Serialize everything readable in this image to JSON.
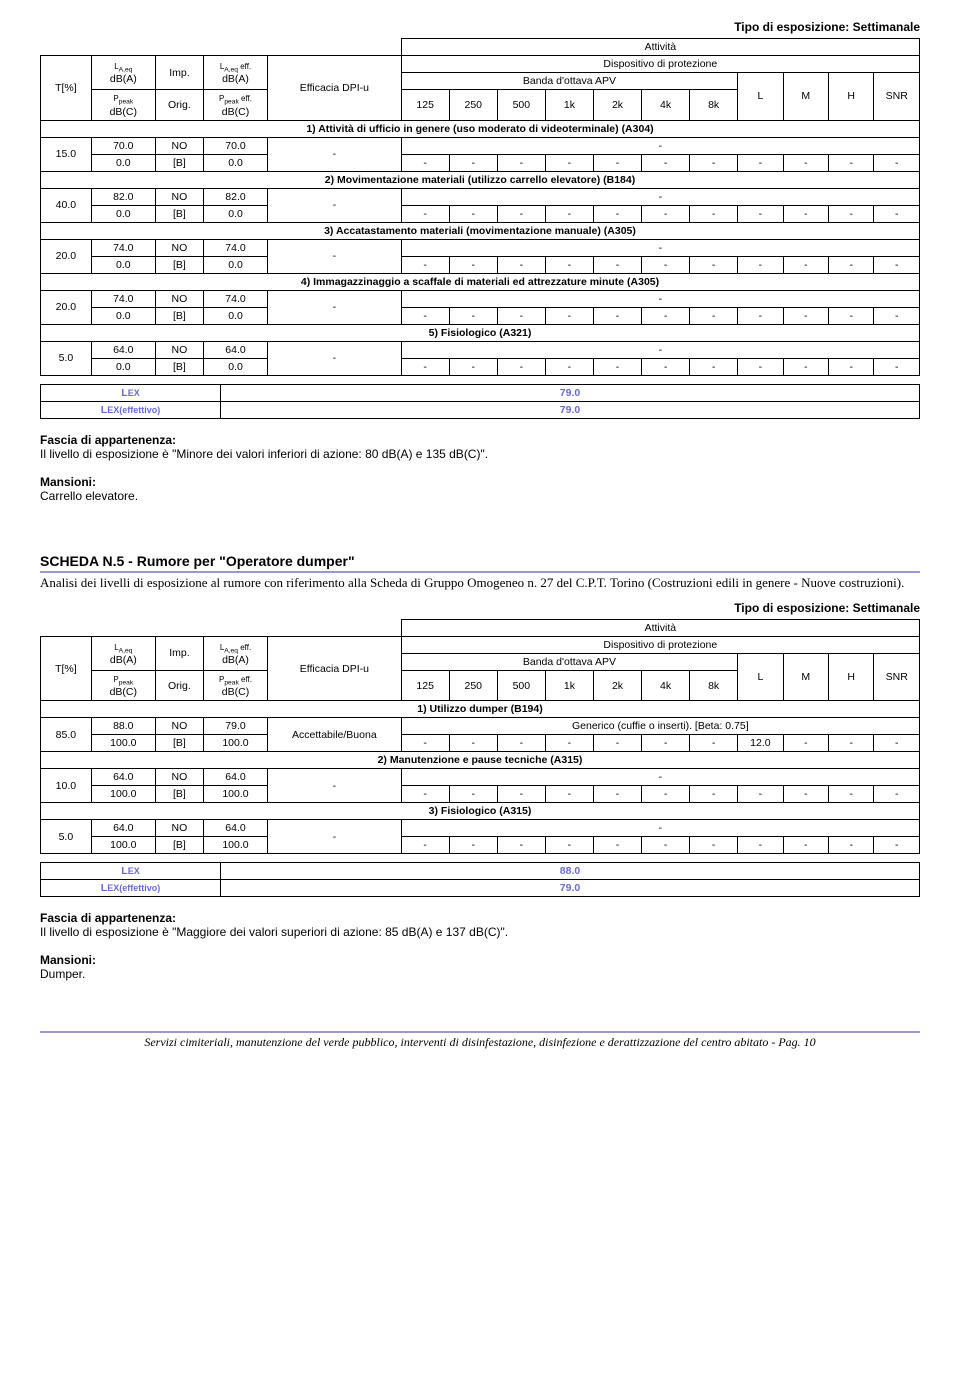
{
  "exposureTypeLabel": "Tipo di esposizione: Settimanale",
  "headers": {
    "attivita": "Attività",
    "tpct": "T[%]",
    "laeq": "LA,eq\ndB(A)",
    "ppeak": "Ppeak\ndB(C)",
    "imp": "Imp.",
    "orig": "Orig.",
    "laeqeff": "LA,eq eff.\ndB(A)",
    "ppeakeff": "Ppeak eff.\ndB(C)",
    "efficacia": "Efficacia DPI-u",
    "dispositivo": "Dispositivo di protezione",
    "banda": "Banda d'ottava APV",
    "bands": [
      "125",
      "250",
      "500",
      "1k",
      "2k",
      "4k",
      "8k"
    ],
    "L": "L",
    "M": "M",
    "H": "H",
    "SNR": "SNR"
  },
  "table1": {
    "activities": [
      {
        "title": "1)  Attività di ufficio in genere (uso moderato di videoterminale) (A304)",
        "t": "15.0",
        "laeq": "70.0",
        "imp": "NO",
        "laeqeff": "70.0",
        "ppeak": "0.0",
        "orig": "[B]",
        "ppeakeff": "0.0",
        "eff": "-",
        "disp": "-",
        "bands": [
          "-",
          "-",
          "-",
          "-",
          "-",
          "-",
          "-"
        ],
        "L": "-",
        "M": "-",
        "H": "-",
        "SNR": "-"
      },
      {
        "title": "2)  Movimentazione materiali (utilizzo carrello elevatore) (B184)",
        "t": "40.0",
        "laeq": "82.0",
        "imp": "NO",
        "laeqeff": "82.0",
        "ppeak": "0.0",
        "orig": "[B]",
        "ppeakeff": "0.0",
        "eff": "-",
        "disp": "-",
        "bands": [
          "-",
          "-",
          "-",
          "-",
          "-",
          "-",
          "-"
        ],
        "L": "-",
        "M": "-",
        "H": "-",
        "SNR": "-"
      },
      {
        "title": "3)  Accatastamento materiali (movimentazione manuale) (A305)",
        "t": "20.0",
        "laeq": "74.0",
        "imp": "NO",
        "laeqeff": "74.0",
        "ppeak": "0.0",
        "orig": "[B]",
        "ppeakeff": "0.0",
        "eff": "-",
        "disp": "-",
        "bands": [
          "-",
          "-",
          "-",
          "-",
          "-",
          "-",
          "-"
        ],
        "L": "-",
        "M": "-",
        "H": "-",
        "SNR": "-"
      },
      {
        "title": "4)  Immagazzinaggio a scaffale di materiali ed attrezzature minute (A305)",
        "t": "20.0",
        "laeq": "74.0",
        "imp": "NO",
        "laeqeff": "74.0",
        "ppeak": "0.0",
        "orig": "[B]",
        "ppeakeff": "0.0",
        "eff": "-",
        "disp": "-",
        "bands": [
          "-",
          "-",
          "-",
          "-",
          "-",
          "-",
          "-"
        ],
        "L": "-",
        "M": "-",
        "H": "-",
        "SNR": "-"
      },
      {
        "title": "5)  Fisiologico (A321)",
        "t": "5.0",
        "laeq": "64.0",
        "imp": "NO",
        "laeqeff": "64.0",
        "ppeak": "0.0",
        "orig": "[B]",
        "ppeakeff": "0.0",
        "eff": "-",
        "disp": "-",
        "bands": [
          "-",
          "-",
          "-",
          "-",
          "-",
          "-",
          "-"
        ],
        "L": "-",
        "M": "-",
        "H": "-",
        "SNR": "-"
      }
    ],
    "lex": "79.0",
    "lexEff": "79.0"
  },
  "lexLabel": "LEX",
  "lexEffLabel": "LEX(effettivo)",
  "fascia1": {
    "label": "Fascia di appartenenza:",
    "text": "Il livello di esposizione è \"Minore dei valori inferiori di azione: 80 dB(A) e 135 dB(C)\"."
  },
  "mansioni1": {
    "label": "Mansioni:",
    "text": "Carrello elevatore."
  },
  "scheda5": {
    "title": "SCHEDA N.5 - Rumore per \"Operatore dumper\"",
    "sub": "Analisi dei livelli di esposizione al rumore con riferimento alla Scheda di Gruppo Omogeneo n. 27 del C.P.T. Torino (Costruzioni edili in genere - Nuove costruzioni)."
  },
  "table2": {
    "activities": [
      {
        "title": "1)  Utilizzo dumper (B194)",
        "t": "85.0",
        "laeq": "88.0",
        "imp": "NO",
        "laeqeff": "79.0",
        "ppeak": "100.0",
        "orig": "[B]",
        "ppeakeff": "100.0",
        "eff": "Accettabile/Buona",
        "disp": "Generico (cuffie o inserti). [Beta: 0.75]",
        "bands": [
          "-",
          "-",
          "-",
          "-",
          "-",
          "-",
          "-"
        ],
        "L": "12.0",
        "M": "-",
        "H": "-",
        "SNR": "-"
      },
      {
        "title": "2)  Manutenzione e pause tecniche (A315)",
        "t": "10.0",
        "laeq": "64.0",
        "imp": "NO",
        "laeqeff": "64.0",
        "ppeak": "100.0",
        "orig": "[B]",
        "ppeakeff": "100.0",
        "eff": "-",
        "disp": "-",
        "bands": [
          "-",
          "-",
          "-",
          "-",
          "-",
          "-",
          "-"
        ],
        "L": "-",
        "M": "-",
        "H": "-",
        "SNR": "-"
      },
      {
        "title": "3)  Fisiologico (A315)",
        "t": "5.0",
        "laeq": "64.0",
        "imp": "NO",
        "laeqeff": "64.0",
        "ppeak": "100.0",
        "orig": "[B]",
        "ppeakeff": "100.0",
        "eff": "-",
        "disp": "-",
        "bands": [
          "-",
          "-",
          "-",
          "-",
          "-",
          "-",
          "-"
        ],
        "L": "-",
        "M": "-",
        "H": "-",
        "SNR": "-"
      }
    ],
    "lex": "88.0",
    "lexEff": "79.0"
  },
  "fascia2": {
    "label": "Fascia di appartenenza:",
    "text": "Il livello di esposizione è \"Maggiore dei valori superiori di azione: 85 dB(A) e 137 dB(C)\"."
  },
  "mansioni2": {
    "label": "Mansioni:",
    "text": "Dumper."
  },
  "footer": "Servizi cimiteriali, manutenzione del verde pubblico, interventi di disinfestazione, disinfezione e derattizzazione del centro abitato  - Pag. 10"
}
